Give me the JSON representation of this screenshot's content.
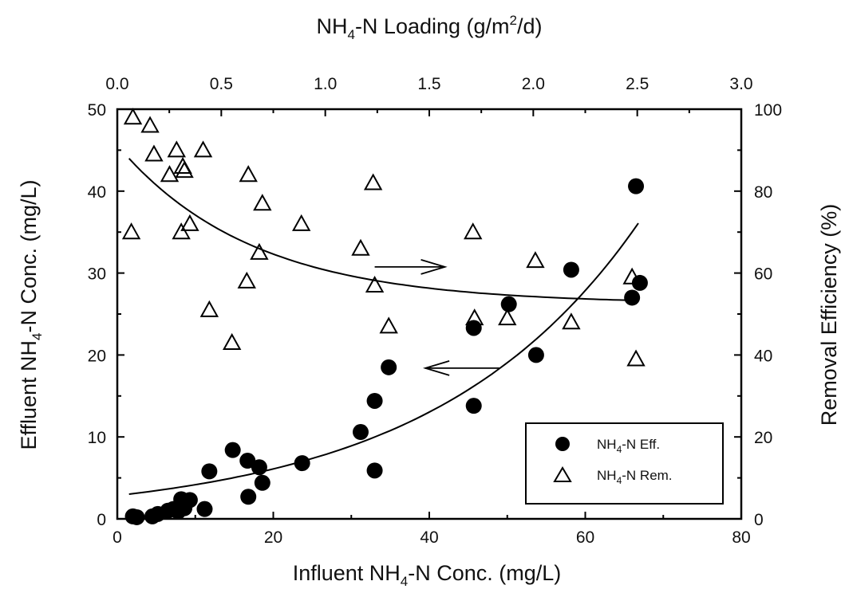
{
  "chart_data": {
    "type": "scatter",
    "title": "",
    "xlabel": {
      "pre": "Influent NH",
      "sub": "4",
      "post": "-N Conc. (mg/L)"
    },
    "ylabel": {
      "pre": "Effluent NH",
      "sub": "4",
      "post": "-N Conc. (mg/L)"
    },
    "x2label": {
      "pre": "NH",
      "sub": "4",
      "mid": "-N Loading (g/m",
      "sup": "2",
      "post": "/d)"
    },
    "y2label": "Removal Efficiency (%)",
    "xlim": [
      0,
      80
    ],
    "ylim": [
      0,
      50
    ],
    "x2lim": [
      0,
      3.0
    ],
    "y2lim": [
      0,
      100
    ],
    "x_ticks": [
      "0",
      "20",
      "40",
      "60",
      "80"
    ],
    "y_ticks": [
      "0",
      "10",
      "20",
      "30",
      "40",
      "50"
    ],
    "x2_ticks": [
      "0.0",
      "0.5",
      "1.0",
      "1.5",
      "2.0",
      "2.5",
      "3.0"
    ],
    "y2_ticks": [
      "0",
      "20",
      "40",
      "60",
      "80",
      "100"
    ],
    "grid": false,
    "legend_position": "bottom-right",
    "series": [
      {
        "name": {
          "pre": "NH",
          "sub": "4",
          "post": "-N Eff."
        },
        "marker": "filled-circle",
        "axis": "left",
        "color": "#000000",
        "points": [
          [
            2.0,
            0.3
          ],
          [
            2.5,
            0.2
          ],
          [
            4.5,
            0.3
          ],
          [
            5.2,
            0.6
          ],
          [
            6.5,
            1.0
          ],
          [
            7.2,
            1.2
          ],
          [
            7.8,
            0.9
          ],
          [
            8.2,
            2.4
          ],
          [
            8.6,
            1.3
          ],
          [
            9.3,
            2.3
          ],
          [
            11.2,
            1.2
          ],
          [
            11.8,
            5.8
          ],
          [
            14.8,
            8.4
          ],
          [
            16.7,
            7.1
          ],
          [
            16.8,
            2.7
          ],
          [
            18.2,
            6.3
          ],
          [
            18.6,
            4.4
          ],
          [
            23.7,
            6.8
          ],
          [
            31.2,
            10.6
          ],
          [
            33.0,
            14.4
          ],
          [
            33.0,
            5.9
          ],
          [
            34.8,
            18.5
          ],
          [
            45.7,
            23.3
          ],
          [
            45.7,
            13.8
          ],
          [
            50.2,
            26.2
          ],
          [
            53.7,
            20.0
          ],
          [
            58.2,
            30.4
          ],
          [
            66.0,
            27.0
          ],
          [
            66.5,
            40.6
          ],
          [
            67.0,
            28.8
          ]
        ]
      },
      {
        "name": {
          "pre": "NH",
          "sub": "4",
          "post": "-N Rem."
        },
        "marker": "open-triangle",
        "axis": "right",
        "color": "#000000",
        "points": [
          [
            1.8,
            70
          ],
          [
            2.0,
            98
          ],
          [
            4.2,
            96
          ],
          [
            4.7,
            89
          ],
          [
            6.7,
            84
          ],
          [
            7.6,
            90
          ],
          [
            8.2,
            70
          ],
          [
            8.4,
            86
          ],
          [
            8.6,
            85
          ],
          [
            9.3,
            72
          ],
          [
            11.0,
            90
          ],
          [
            11.8,
            51
          ],
          [
            14.7,
            43
          ],
          [
            16.6,
            58
          ],
          [
            16.8,
            84
          ],
          [
            18.2,
            65
          ],
          [
            18.6,
            77
          ],
          [
            23.6,
            72
          ],
          [
            31.2,
            66
          ],
          [
            32.8,
            82
          ],
          [
            33.0,
            57
          ],
          [
            34.8,
            47
          ],
          [
            45.6,
            70
          ],
          [
            45.8,
            49
          ],
          [
            50.0,
            49
          ],
          [
            53.6,
            63
          ],
          [
            58.2,
            48
          ],
          [
            66.0,
            59
          ],
          [
            66.5,
            39
          ]
        ]
      }
    ],
    "fits": [
      {
        "series": "eff",
        "axis": "left",
        "a": 2.85,
        "b": 0.038,
        "x_range": [
          1.5,
          66.8
        ]
      },
      {
        "series": "rem",
        "axis": "right",
        "plateau": 52.5,
        "amp": 38.7,
        "rate": 0.058,
        "x_range": [
          1.5,
          66.8
        ]
      }
    ],
    "annotations": [
      {
        "type": "arrow",
        "direction": "right",
        "meaning": "points to right axis (Removal Efficiency)",
        "at_x": [
          33.0,
          42.0
        ],
        "at_y_right": 61.5
      },
      {
        "type": "arrow",
        "direction": "left",
        "meaning": "points to left axis (Effluent)",
        "at_x": [
          49.0,
          39.5
        ],
        "at_y_left": 18.4
      }
    ]
  }
}
